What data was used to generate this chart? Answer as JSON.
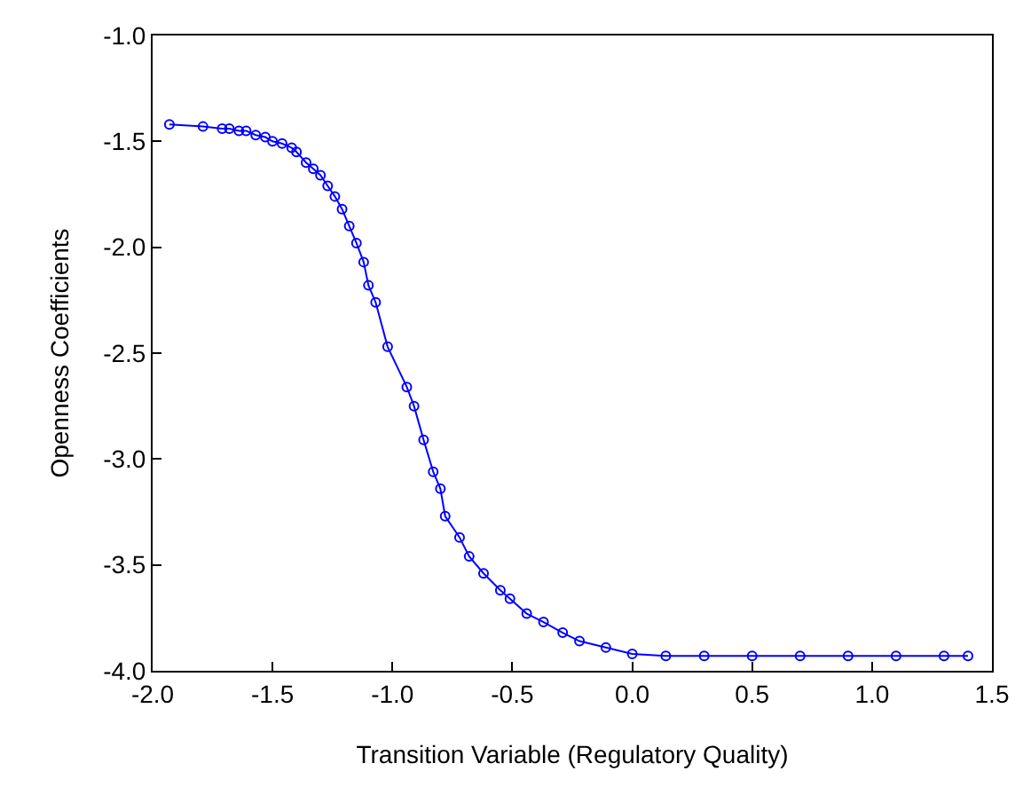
{
  "chart_data": {
    "type": "line",
    "xlabel": "Transition Variable (Regulatory Quality)",
    "ylabel": "Openness Coefficients",
    "x": [
      -1.93,
      -1.79,
      -1.71,
      -1.68,
      -1.64,
      -1.61,
      -1.57,
      -1.53,
      -1.5,
      -1.46,
      -1.42,
      -1.4,
      -1.36,
      -1.33,
      -1.3,
      -1.27,
      -1.24,
      -1.21,
      -1.18,
      -1.15,
      -1.12,
      -1.1,
      -1.07,
      -1.02,
      -0.94,
      -0.91,
      -0.87,
      -0.83,
      -0.8,
      -0.78,
      -0.72,
      -0.68,
      -0.62,
      -0.55,
      -0.51,
      -0.44,
      -0.37,
      -0.29,
      -0.22,
      -0.11,
      0.0,
      0.14,
      0.3,
      0.5,
      0.7,
      0.9,
      1.1,
      1.3,
      1.4
    ],
    "series": [
      {
        "color": "#0000ff",
        "values": [
          -1.42,
          -1.43,
          -1.44,
          -1.44,
          -1.45,
          -1.45,
          -1.47,
          -1.48,
          -1.5,
          -1.51,
          -1.53,
          -1.55,
          -1.6,
          -1.63,
          -1.66,
          -1.71,
          -1.76,
          -1.82,
          -1.9,
          -1.98,
          -2.07,
          -2.18,
          -2.26,
          -2.47,
          -2.66,
          -2.75,
          -2.91,
          -3.06,
          -3.14,
          -3.27,
          -3.37,
          -3.46,
          -3.54,
          -3.62,
          -3.66,
          -3.73,
          -3.77,
          -3.82,
          -3.86,
          -3.89,
          -3.92,
          -3.93,
          -3.93,
          -3.93,
          -3.93,
          -3.93,
          -3.93,
          -3.93,
          -3.93
        ]
      }
    ],
    "xlim": [
      -2.0,
      1.5
    ],
    "xticks": [
      {
        "value": -2.0,
        "label": "-2.0"
      },
      {
        "value": -1.5,
        "label": "-1.5"
      },
      {
        "value": -1.0,
        "label": "-1.0"
      },
      {
        "value": -0.5,
        "label": "-0.5"
      },
      {
        "value": 0.0,
        "label": "0.0"
      },
      {
        "value": 0.5,
        "label": "0.5"
      },
      {
        "value": 1.0,
        "label": "1.0"
      },
      {
        "value": 1.5,
        "label": "1.5"
      }
    ],
    "ylim": [
      -4.0,
      -1.0
    ],
    "yticks": [
      {
        "value": -4.0,
        "label": "-4.0"
      },
      {
        "value": -3.5,
        "label": "-3.5"
      },
      {
        "value": -3.0,
        "label": "-3.0"
      },
      {
        "value": -2.5,
        "label": "-2.5"
      },
      {
        "value": -2.0,
        "label": "-2.0"
      },
      {
        "value": -1.5,
        "label": "-1.5"
      },
      {
        "value": -1.0,
        "label": "-1.0"
      }
    ],
    "marker": "circle",
    "line_style": "solid"
  }
}
